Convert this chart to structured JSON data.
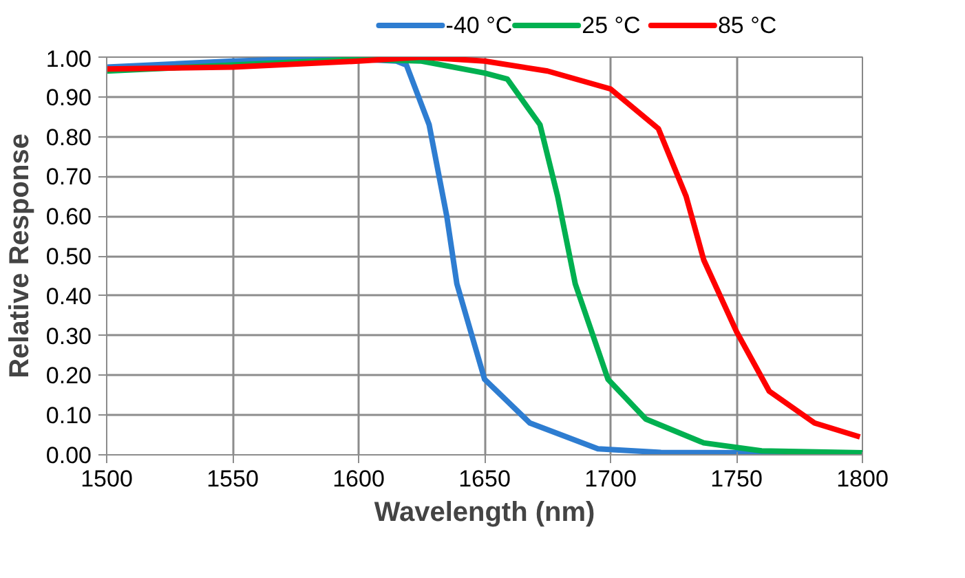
{
  "chart_data": {
    "type": "line",
    "xlabel": "Wavelength (nm)",
    "ylabel": "Relative Response",
    "xlim": [
      1500,
      1800
    ],
    "xticks": [
      1500,
      1550,
      1600,
      1650,
      1700,
      1750,
      1800
    ],
    "ylim": [
      0,
      1
    ],
    "yticks": [
      {
        "value": 0,
        "label": "0.00"
      },
      {
        "value": 0.1,
        "label": "0.10"
      },
      {
        "value": 0.2,
        "label": "0.20"
      },
      {
        "value": 0.3,
        "label": "0.30"
      },
      {
        "value": 0.4,
        "label": "0.40"
      },
      {
        "value": 0.5,
        "label": "0.50"
      },
      {
        "value": 0.6,
        "label": "0.60"
      },
      {
        "value": 0.7,
        "label": "0.70"
      },
      {
        "value": 0.8,
        "label": "0.80"
      },
      {
        "value": 0.9,
        "label": "0.90"
      },
      {
        "value": 1,
        "label": "1.00"
      }
    ],
    "grid": true,
    "legend": "top",
    "marker": "none",
    "line_style": "solid",
    "series": [
      {
        "name": "-40 °C",
        "color": "#2e7dd1",
        "x": [
          1500,
          1550,
          1575,
          1600,
          1615,
          1619,
          1628,
          1635,
          1639,
          1650,
          1668,
          1695,
          1720,
          1760,
          1800
        ],
        "values": [
          0.975,
          0.99,
          0.995,
          0.995,
          0.99,
          0.98,
          0.83,
          0.6,
          0.43,
          0.19,
          0.08,
          0.015,
          0.006,
          0.005,
          0.005
        ]
      },
      {
        "name": "25 °C",
        "color": "#00b050",
        "x": [
          1500,
          1550,
          1600,
          1625,
          1650,
          1659,
          1672,
          1679,
          1686,
          1699,
          1714,
          1737,
          1760,
          1800
        ],
        "values": [
          0.965,
          0.98,
          0.995,
          0.99,
          0.96,
          0.945,
          0.83,
          0.65,
          0.43,
          0.19,
          0.09,
          0.03,
          0.01,
          0.005
        ]
      },
      {
        "name": "85 °C",
        "color": "#ff0000",
        "x": [
          1500,
          1550,
          1600,
          1625,
          1650,
          1675,
          1700,
          1719,
          1730,
          1737,
          1750,
          1763,
          1781,
          1799
        ],
        "values": [
          0.97,
          0.975,
          0.99,
          1.0,
          0.99,
          0.965,
          0.92,
          0.82,
          0.65,
          0.49,
          0.31,
          0.16,
          0.08,
          0.045
        ]
      }
    ]
  }
}
